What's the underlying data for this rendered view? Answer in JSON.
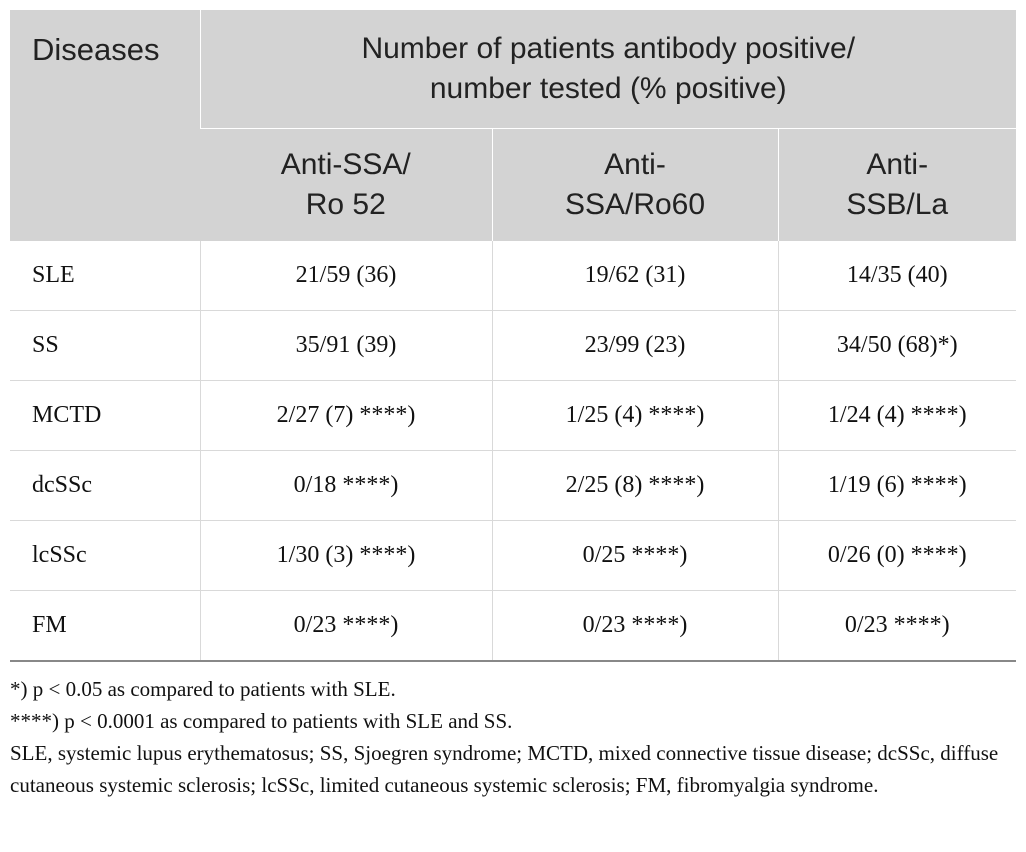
{
  "table": {
    "header": {
      "diseases": "Diseases",
      "group_line1": "Number of patients antibody positive/",
      "group_line2": "number tested (% positive)",
      "columns": [
        {
          "line1": "Anti-SSA/",
          "line2": "Ro 52"
        },
        {
          "line1": "Anti-",
          "line2": "SSA/Ro60"
        },
        {
          "line1": "Anti-",
          "line2": "SSB/La"
        }
      ]
    },
    "rows": [
      {
        "disease": "SLE",
        "ro52": "21/59 (36)",
        "ro60": "19/62 (31)",
        "la": "14/35 (40)"
      },
      {
        "disease": "SS",
        "ro52": "35/91 (39)",
        "ro60": "23/99 (23)",
        "la": "34/50 (68)*)"
      },
      {
        "disease": "MCTD",
        "ro52": "2/27 (7) ****)",
        "ro60": "1/25 (4) ****)",
        "la": "1/24 (4) ****)"
      },
      {
        "disease": "dcSSc",
        "ro52": "0/18 ****)",
        "ro60": "2/25 (8) ****)",
        "la": "1/19 (6) ****)"
      },
      {
        "disease": "lcSSc",
        "ro52": "1/30 (3) ****)",
        "ro60": "0/25 ****)",
        "la": "0/26 (0) ****)"
      },
      {
        "disease": "FM",
        "ro52": "0/23 ****)",
        "ro60": "0/23 ****)",
        "la": "0/23 ****)"
      }
    ]
  },
  "footnotes": {
    "note1": "*) p < 0.05 as compared to patients with SLE.",
    "note2": "****) p < 0.0001 as compared to patients with SLE and SS.",
    "abbreviations": "SLE, systemic lupus erythematosus; SS, Sjoegren syndrome; MCTD, mixed connective tissue disease; dcSSc, diffuse cutaneous systemic sclerosis; lcSSc, limited cutaneous systemic sclerosis; FM, fibromyalgia syndrome."
  }
}
